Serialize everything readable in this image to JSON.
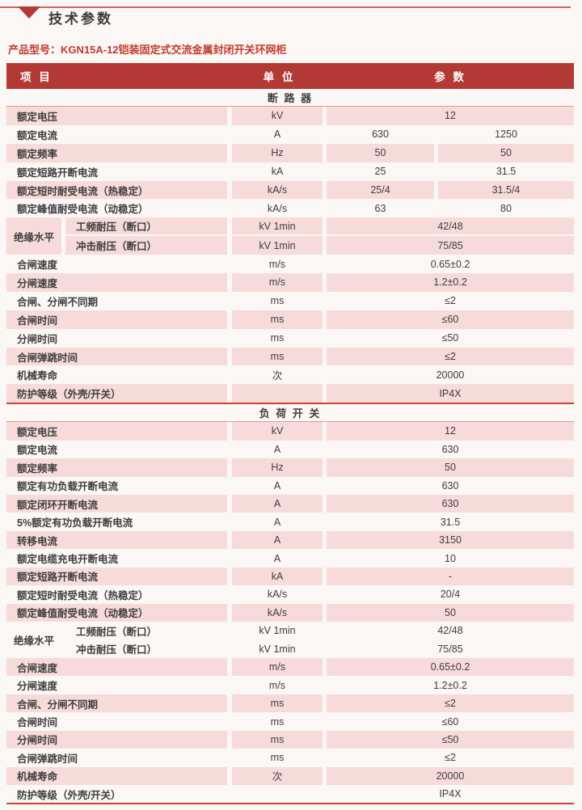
{
  "page": {
    "title": "技术参数",
    "product_label": "产品型号：KGN15A-12铠装固定式交流金属封闭开关环网柜"
  },
  "colors": {
    "page_bg": "#fbf7f4",
    "bar": "#b33a34",
    "pink": "#f7dbda",
    "line": "#c8432f",
    "line_light": "#dd9c93",
    "product": "#c23a30",
    "text": "#3d3d3d"
  },
  "table": {
    "headers": {
      "item": "项 目",
      "unit": "单 位",
      "param": "参 数"
    },
    "sections": [
      {
        "name": "断 路 器",
        "rows": [
          {
            "label": "额定电压",
            "unit": "kV",
            "values": [
              "12"
            ]
          },
          {
            "label": "额定电流",
            "unit": "A",
            "values": [
              "630",
              "1250"
            ]
          },
          {
            "label": "额定频率",
            "unit": "Hz",
            "values": [
              "50",
              "50"
            ]
          },
          {
            "label": "额定短路开断电流",
            "unit": "kA",
            "values": [
              "25",
              "31.5"
            ]
          },
          {
            "label": "额定短时耐受电流（热稳定）",
            "unit": "kA/s",
            "values": [
              "25/4",
              "31.5/4"
            ]
          },
          {
            "label": "额定峰值耐受电流（动稳定）",
            "unit": "kA/s",
            "values": [
              "63",
              "80"
            ]
          },
          {
            "group": "绝缘水平",
            "subrows": [
              {
                "label": "工频耐压（断口）",
                "unit": "kV 1min",
                "values": [
                  "42/48"
                ]
              },
              {
                "label": "冲击耐压（断口）",
                "unit": "kV 1min",
                "values": [
                  "75/85"
                ]
              }
            ]
          },
          {
            "label": "合闸速度",
            "unit": "m/s",
            "values": [
              "0.65±0.2"
            ]
          },
          {
            "label": "分闸速度",
            "unit": "m/s",
            "values": [
              "1.2±0.2"
            ]
          },
          {
            "label": "合闸、分闸不同期",
            "unit": "ms",
            "values": [
              "≤2"
            ]
          },
          {
            "label": "合闸时间",
            "unit": "ms",
            "values": [
              "≤60"
            ]
          },
          {
            "label": "分闸时间",
            "unit": "ms",
            "values": [
              "≤50"
            ]
          },
          {
            "label": "合闸弹跳时间",
            "unit": "ms",
            "values": [
              "≤2"
            ]
          },
          {
            "label": "机械寿命",
            "unit": "次",
            "values": [
              "20000"
            ]
          },
          {
            "label": "防护等级（外壳/开关）",
            "unit": "",
            "values": [
              "IP4X"
            ]
          }
        ]
      },
      {
        "name": "负 荷 开 关",
        "rows": [
          {
            "label": "额定电压",
            "unit": "kV",
            "values": [
              "12"
            ]
          },
          {
            "label": "额定电流",
            "unit": "A",
            "values": [
              "630"
            ]
          },
          {
            "label": "额定频率",
            "unit": "Hz",
            "values": [
              "50"
            ]
          },
          {
            "label": "额定有功负载开断电流",
            "unit": "A",
            "values": [
              "630"
            ]
          },
          {
            "label": "额定闭环开断电流",
            "unit": "A",
            "values": [
              "630"
            ]
          },
          {
            "label": "5%额定有功负载开断电流",
            "unit": "A",
            "values": [
              "31.5"
            ]
          },
          {
            "label": "转移电流",
            "unit": "A",
            "values": [
              "3150"
            ]
          },
          {
            "label": "额定电缆充电开断电流",
            "unit": "A",
            "values": [
              "10"
            ]
          },
          {
            "label": "额定短路开断电流",
            "unit": "kA",
            "values": [
              "-"
            ]
          },
          {
            "label": "额定短时耐受电流（热稳定）",
            "unit": "kA/s",
            "values": [
              "20/4"
            ]
          },
          {
            "label": "额定峰值耐受电流（动稳定）",
            "unit": "kA/s",
            "values": [
              "50"
            ]
          },
          {
            "group": "绝缘水平",
            "subrows": [
              {
                "label": "工频耐压（断口）",
                "unit": "kV 1min",
                "values": [
                  "42/48"
                ]
              },
              {
                "label": "冲击耐压（断口）",
                "unit": "kV 1min",
                "values": [
                  "75/85"
                ]
              }
            ]
          },
          {
            "label": "合闸速度",
            "unit": "m/s",
            "values": [
              "0.65±0.2"
            ]
          },
          {
            "label": "分闸速度",
            "unit": "m/s",
            "values": [
              "1.2±0.2"
            ]
          },
          {
            "label": "合闸、分闸不同期",
            "unit": "ms",
            "values": [
              "≤2"
            ]
          },
          {
            "label": "合闸时间",
            "unit": "ms",
            "values": [
              "≤60"
            ]
          },
          {
            "label": "分闸时间",
            "unit": "ms",
            "values": [
              "≤50"
            ]
          },
          {
            "label": "合闸弹跳时间",
            "unit": "ms",
            "values": [
              "≤2"
            ]
          },
          {
            "label": "机械寿命",
            "unit": "次",
            "values": [
              "20000"
            ]
          },
          {
            "label": "防护等级（外壳/开关）",
            "unit": "",
            "values": [
              "IP4X"
            ]
          }
        ]
      }
    ]
  }
}
